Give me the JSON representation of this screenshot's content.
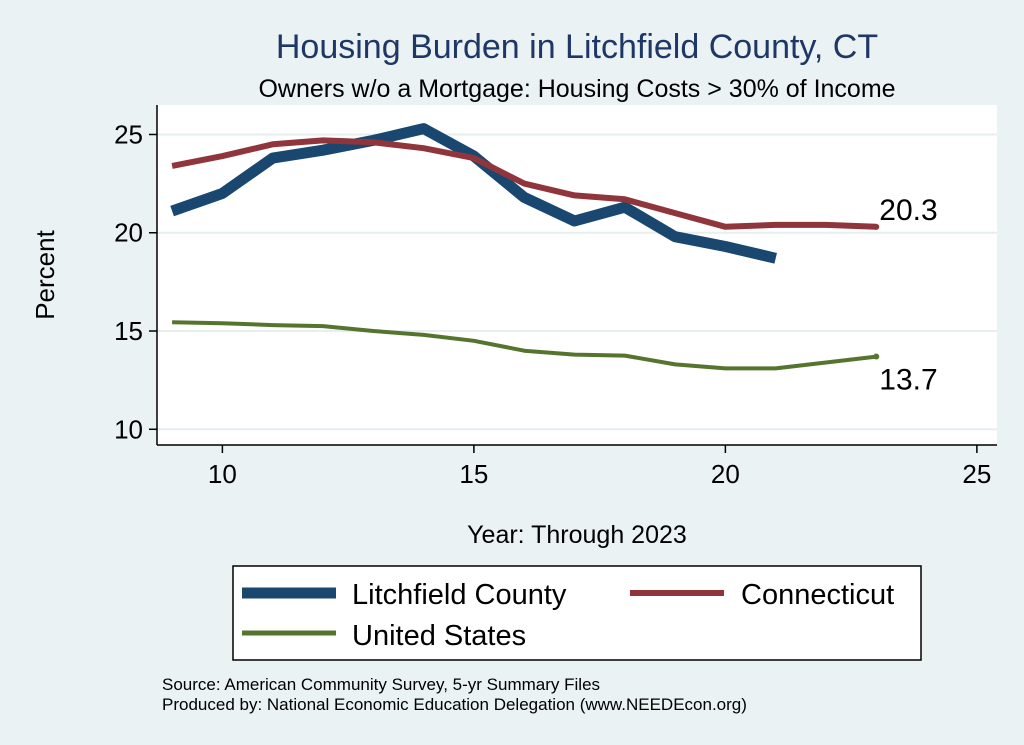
{
  "chart_data": {
    "type": "line",
    "title": "Housing Burden in Litchfield County, CT",
    "subtitle": "Owners w/o a Mortgage: Housing Costs > 30% of Income",
    "xlabel": "Year: Through 2023",
    "ylabel": "Percent",
    "xlim": [
      8.7,
      25.4
    ],
    "ylim": [
      9.2,
      26.5
    ],
    "x_ticks": [
      10,
      15,
      20,
      25
    ],
    "y_ticks": [
      10,
      15,
      20,
      25
    ],
    "grid": "horizontal",
    "legend_position": "bottom",
    "series": [
      {
        "name": "Litchfield County",
        "color": "#1a476f",
        "width": "thick",
        "x": [
          9,
          10,
          11,
          12,
          13,
          14,
          15,
          16,
          17,
          18,
          19,
          20,
          21
        ],
        "values": [
          21.1,
          22.0,
          23.8,
          24.2,
          24.7,
          25.3,
          23.9,
          21.8,
          20.6,
          21.3,
          19.8,
          19.3,
          18.7
        ]
      },
      {
        "name": "Connecticut",
        "color": "#90353b",
        "width": "medium",
        "x": [
          9,
          10,
          11,
          12,
          13,
          14,
          15,
          16,
          17,
          18,
          19,
          20,
          21,
          22,
          23
        ],
        "values": [
          23.4,
          23.9,
          24.5,
          24.7,
          24.6,
          24.3,
          23.8,
          22.5,
          21.9,
          21.7,
          21.0,
          20.3,
          20.4,
          20.4,
          20.3
        ]
      },
      {
        "name": "United States",
        "color": "#55752f",
        "width": "thin",
        "x": [
          9,
          10,
          11,
          12,
          13,
          14,
          15,
          16,
          17,
          18,
          19,
          20,
          21,
          22,
          23
        ],
        "values": [
          15.45,
          15.4,
          15.3,
          15.25,
          15.0,
          14.8,
          14.5,
          14.0,
          13.8,
          13.75,
          13.3,
          13.1,
          13.1,
          13.4,
          13.7
        ]
      }
    ],
    "annotations": [
      {
        "series": "Connecticut",
        "x": 23,
        "y": 20.3,
        "label": "20.3",
        "position": "above"
      },
      {
        "series": "United States",
        "x": 23,
        "y": 13.7,
        "label": "13.7",
        "position": "below"
      }
    ],
    "source_lines": [
      "Source: American Community Survey, 5-yr Summary Files",
      "Produced by: National Economic Education Delegation (www.NEEDEcon.org)"
    ]
  },
  "colors": {
    "background": "#eaf2f3",
    "plot_background": "#ffffff",
    "title": "#1e3766",
    "grid": "#e7eef0",
    "axis": "#000000"
  }
}
